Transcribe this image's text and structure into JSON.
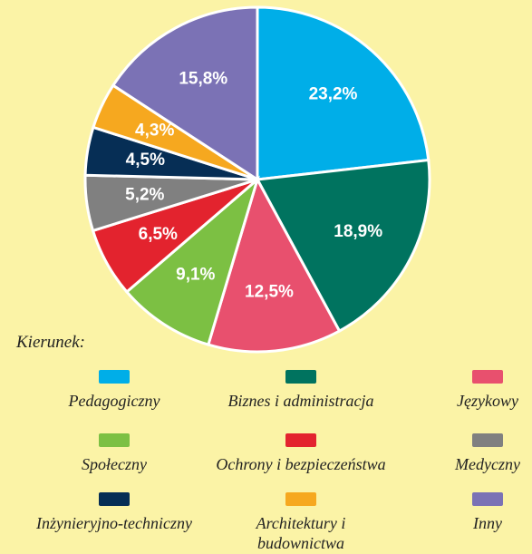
{
  "chart_data": {
    "type": "pie",
    "legend_title": "Kierunek:",
    "categories": [
      "Pedagogiczny",
      "Biznes i administracja",
      "Językowy",
      "Społeczny",
      "Ochrony i bezpieczeństwa",
      "Medyczny",
      "Inżynieryjno-techniczny",
      "Architektury i budownictwa",
      "Inny"
    ],
    "values": [
      23.2,
      18.9,
      12.5,
      9.1,
      6.5,
      5.2,
      4.5,
      4.3,
      15.8
    ],
    "value_labels": [
      "23,2%",
      "18,9%",
      "12,5%",
      "9,1%",
      "6,5%",
      "5,2%",
      "4,5%",
      "4,3%",
      "15,8%"
    ],
    "colors": [
      "#00aee8",
      "#00735f",
      "#e8506e",
      "#7cc043",
      "#e3232e",
      "#808080",
      "#062e55",
      "#f6a81f",
      "#7b72b5"
    ],
    "legend": "bottom"
  }
}
